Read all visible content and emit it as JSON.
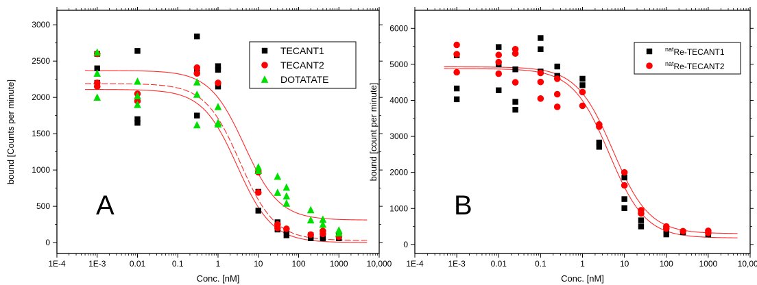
{
  "chart_data": [
    {
      "type": "scatter",
      "panel_label": "A",
      "xlabel": "Conc. [nM]",
      "ylabel": "bound [Counts per minute]",
      "x_scale": "log",
      "xlim": [
        0.0001,
        10000
      ],
      "ylim": [
        -150,
        3200
      ],
      "x_ticks": [
        0.0001,
        0.001,
        0.01,
        0.1,
        1,
        10,
        100,
        1000,
        10000
      ],
      "x_tick_labels": [
        "1E-4",
        "1E-3",
        "0.01",
        "0.1",
        "1",
        "10",
        "100",
        "1000",
        "10,000"
      ],
      "y_ticks": [
        0,
        500,
        1000,
        1500,
        2000,
        2500,
        3000
      ],
      "y_tick_labels": [
        "0",
        "500",
        "1000",
        "1500",
        "2000",
        "2500",
        "3000"
      ],
      "legend_position": "top-right",
      "fit_color": "#ff2a2a",
      "series": [
        {
          "name": "TECANT1",
          "marker": "square",
          "color": "#000000",
          "points": [
            [
              0.001,
              2600
            ],
            [
              0.001,
              2400
            ],
            [
              0.001,
              2200
            ],
            [
              0.01,
              2640
            ],
            [
              0.01,
              1700
            ],
            [
              0.01,
              1650
            ],
            [
              0.3,
              2840
            ],
            [
              0.3,
              2380
            ],
            [
              0.3,
              1750
            ],
            [
              1,
              2430
            ],
            [
              1,
              2380
            ],
            [
              1,
              2150
            ],
            [
              10,
              700
            ],
            [
              10,
              440
            ],
            [
              30,
              280
            ],
            [
              30,
              230
            ],
            [
              30,
              180
            ],
            [
              50,
              160
            ],
            [
              50,
              100
            ],
            [
              200,
              100
            ],
            [
              200,
              60
            ],
            [
              400,
              80
            ],
            [
              400,
              60
            ],
            [
              1000,
              110
            ],
            [
              1000,
              60
            ]
          ]
        },
        {
          "name": "TECANT2",
          "marker": "circle",
          "color": "#ff0000",
          "points": [
            [
              0.001,
              2600
            ],
            [
              0.001,
              2200
            ],
            [
              0.001,
              2150
            ],
            [
              0.01,
              2050
            ],
            [
              0.01,
              1950
            ],
            [
              0.3,
              2410
            ],
            [
              0.3,
              2330
            ],
            [
              1,
              2200
            ],
            [
              10,
              970
            ],
            [
              10,
              690
            ],
            [
              30,
              250
            ],
            [
              30,
              200
            ],
            [
              50,
              190
            ],
            [
              200,
              110
            ],
            [
              400,
              160
            ],
            [
              400,
              120
            ],
            [
              1000,
              80
            ]
          ]
        },
        {
          "name": "DOTATATE",
          "marker": "triangle",
          "color": "#00e000",
          "points": [
            [
              0.001,
              2620
            ],
            [
              0.001,
              2330
            ],
            [
              0.001,
              2000
            ],
            [
              0.01,
              2220
            ],
            [
              0.01,
              2020
            ],
            [
              0.01,
              1900
            ],
            [
              0.3,
              2210
            ],
            [
              0.3,
              2040
            ],
            [
              0.3,
              1620
            ],
            [
              1,
              1870
            ],
            [
              1,
              1650
            ],
            [
              1,
              1630
            ],
            [
              10,
              1040
            ],
            [
              10,
              990
            ],
            [
              30,
              910
            ],
            [
              30,
              690
            ],
            [
              50,
              760
            ],
            [
              50,
              640
            ],
            [
              50,
              540
            ],
            [
              200,
              450
            ],
            [
              200,
              310
            ],
            [
              400,
              320
            ],
            [
              400,
              250
            ],
            [
              1000,
              170
            ],
            [
              1000,
              130
            ]
          ]
        }
      ],
      "fits": [
        {
          "top": 2370,
          "bottom": 310,
          "ec50": 4.5,
          "hill": 1.0,
          "dashed": false
        },
        {
          "top": 2190,
          "bottom": 30,
          "ec50": 3.5,
          "hill": 1.0,
          "dashed": true
        },
        {
          "top": 2110,
          "bottom": 0,
          "ec50": 3.0,
          "hill": 1.0,
          "dashed": false
        }
      ]
    },
    {
      "type": "scatter",
      "panel_label": "B",
      "xlabel": "Conc. [nM]",
      "ylabel": "bound [count per minute]",
      "x_scale": "log",
      "xlim": [
        0.0001,
        10000
      ],
      "ylim": [
        -250,
        6500
      ],
      "x_ticks": [
        0.0001,
        0.001,
        0.01,
        0.1,
        1,
        10,
        100,
        1000,
        10000
      ],
      "x_tick_labels": [
        "1E-4",
        "1E-3",
        "0.01",
        "0.1",
        "1",
        "10",
        "100",
        "1000",
        "10,000"
      ],
      "y_ticks": [
        0,
        1000,
        2000,
        3000,
        4000,
        5000,
        6000
      ],
      "y_tick_labels": [
        "0",
        "1000",
        "2000",
        "3000",
        "4000",
        "5000",
        "6000"
      ],
      "legend_position": "top-right",
      "fit_color": "#ff2a2a",
      "series": [
        {
          "name_superscript": "nat",
          "name": "Re-TECANT1",
          "marker": "square",
          "color": "#000000",
          "points": [
            [
              0.001,
              5250
            ],
            [
              0.001,
              4330
            ],
            [
              0.001,
              4030
            ],
            [
              0.01,
              5480
            ],
            [
              0.01,
              5000
            ],
            [
              0.01,
              4280
            ],
            [
              0.025,
              4860
            ],
            [
              0.025,
              3960
            ],
            [
              0.025,
              3740
            ],
            [
              0.1,
              5730
            ],
            [
              0.1,
              5420
            ],
            [
              0.1,
              4800
            ],
            [
              0.25,
              4940
            ],
            [
              0.25,
              4680
            ],
            [
              1,
              4600
            ],
            [
              1,
              4420
            ],
            [
              2.5,
              2830
            ],
            [
              2.5,
              2710
            ],
            [
              10,
              1860
            ],
            [
              10,
              1260
            ],
            [
              10,
              1010
            ],
            [
              25,
              670
            ],
            [
              25,
              500
            ],
            [
              100,
              400
            ],
            [
              100,
              280
            ],
            [
              250,
              340
            ],
            [
              1000,
              280
            ]
          ]
        },
        {
          "name_superscript": "nat",
          "name": "Re-TECANT2",
          "marker": "circle",
          "color": "#ff0000",
          "points": [
            [
              0.001,
              5540
            ],
            [
              0.001,
              5280
            ],
            [
              0.001,
              4780
            ],
            [
              0.01,
              5260
            ],
            [
              0.01,
              5060
            ],
            [
              0.01,
              4740
            ],
            [
              0.025,
              5420
            ],
            [
              0.025,
              5300
            ],
            [
              0.025,
              4500
            ],
            [
              0.1,
              4760
            ],
            [
              0.1,
              4510
            ],
            [
              0.1,
              4050
            ],
            [
              0.25,
              4600
            ],
            [
              0.25,
              4170
            ],
            [
              0.25,
              3820
            ],
            [
              1,
              4230
            ],
            [
              1,
              3850
            ],
            [
              2.5,
              3330
            ],
            [
              2.5,
              3270
            ],
            [
              10,
              2000
            ],
            [
              10,
              1640
            ],
            [
              25,
              950
            ],
            [
              25,
              860
            ],
            [
              100,
              500
            ],
            [
              100,
              440
            ],
            [
              250,
              370
            ],
            [
              1000,
              380
            ],
            [
              1000,
              320
            ]
          ]
        }
      ],
      "fits": [
        {
          "top": 4880,
          "bottom": 180,
          "ec50": 4.3,
          "hill": 1.0,
          "dashed": false
        },
        {
          "top": 4930,
          "bottom": 300,
          "ec50": 5.3,
          "hill": 1.0,
          "dashed": false
        }
      ]
    }
  ]
}
